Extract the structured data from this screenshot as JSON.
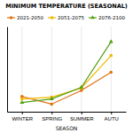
{
  "chart_data": {
    "type": "line",
    "title": "MINIMUM TEMPERATURE (SEASONAL)",
    "xlabel": "SEASON",
    "categories": [
      "WINTER",
      "SPRING",
      "SUMMER",
      "AUTU"
    ],
    "series": [
      {
        "name": "2021-2050",
        "color": "#e07010",
        "marker": "circle",
        "values": [
          0.5,
          0.25,
          0.7,
          1.3
        ]
      },
      {
        "name": "2051-2075",
        "color": "#f0b800",
        "marker": "square",
        "values": [
          0.42,
          0.48,
          0.78,
          1.85
        ]
      },
      {
        "name": "2076-2100",
        "color": "#50a010",
        "marker": "triangle",
        "values": [
          0.3,
          0.42,
          0.8,
          2.3
        ]
      }
    ],
    "ylim": [
      0.0,
      2.8
    ],
    "grid": true,
    "legend": "upper left",
    "tick_labels": "x"
  }
}
